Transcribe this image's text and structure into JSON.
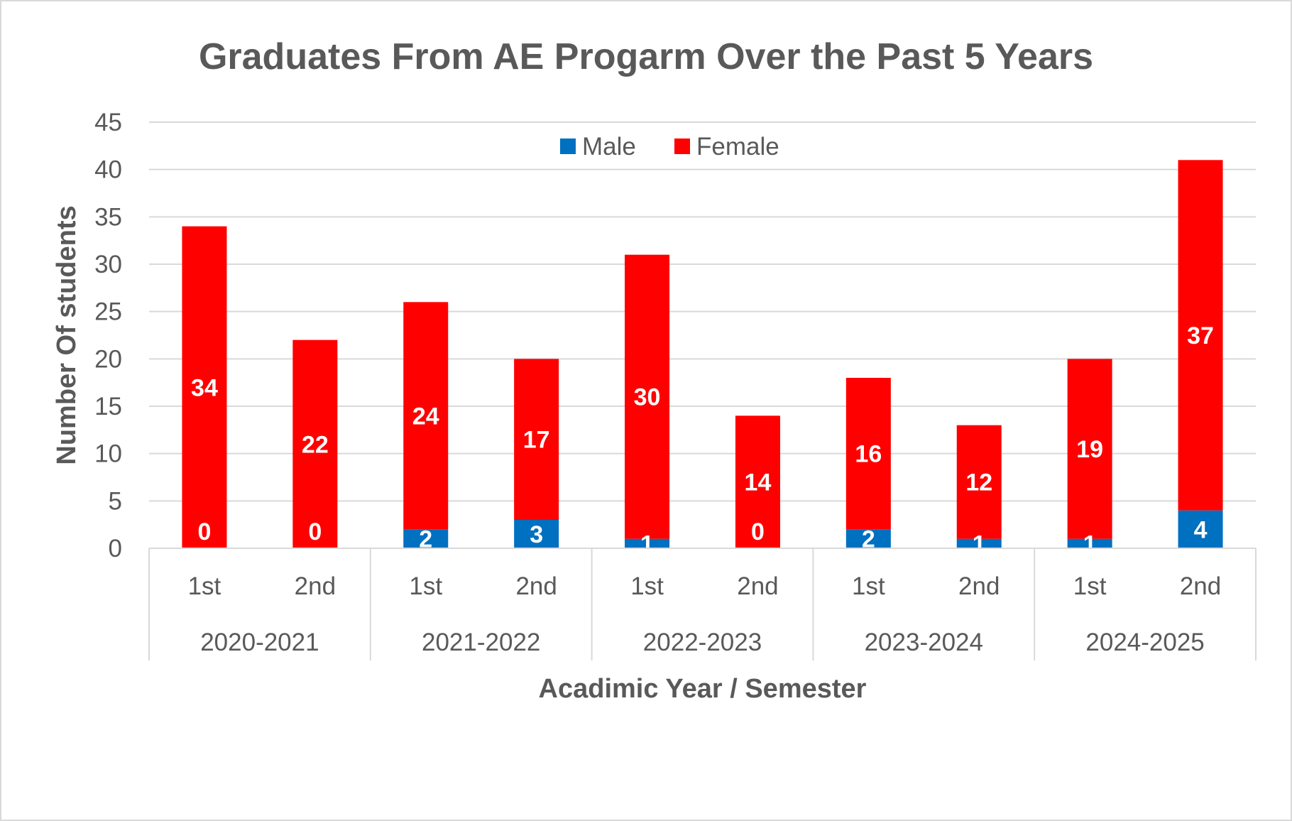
{
  "chart_data": {
    "type": "bar",
    "stacked": true,
    "title": "Graduates From AE Progarm Over the Past 5 Years",
    "xlabel": "Acadimic Year / Semester",
    "ylabel": "Number Of students",
    "ylim": [
      0,
      45
    ],
    "y_ticks": [
      "0",
      "5",
      "10",
      "15",
      "20",
      "25",
      "30",
      "35",
      "40",
      "45"
    ],
    "grid": true,
    "legend_position": "top-center",
    "groups": [
      "2020-2021",
      "2021-2022",
      "2022-2023",
      "2023-2024",
      "2024-2025"
    ],
    "categories": [
      "1st",
      "2nd",
      "1st",
      "2nd",
      "1st",
      "2nd",
      "1st",
      "2nd",
      "1st",
      "2nd"
    ],
    "series": [
      {
        "name": "Male",
        "color": "#0070c0",
        "values": [
          0,
          0,
          2,
          3,
          1,
          0,
          2,
          1,
          1,
          4
        ]
      },
      {
        "name": "Female",
        "color": "#ff0000",
        "values": [
          34,
          22,
          24,
          17,
          30,
          14,
          16,
          12,
          19,
          37
        ]
      }
    ]
  }
}
